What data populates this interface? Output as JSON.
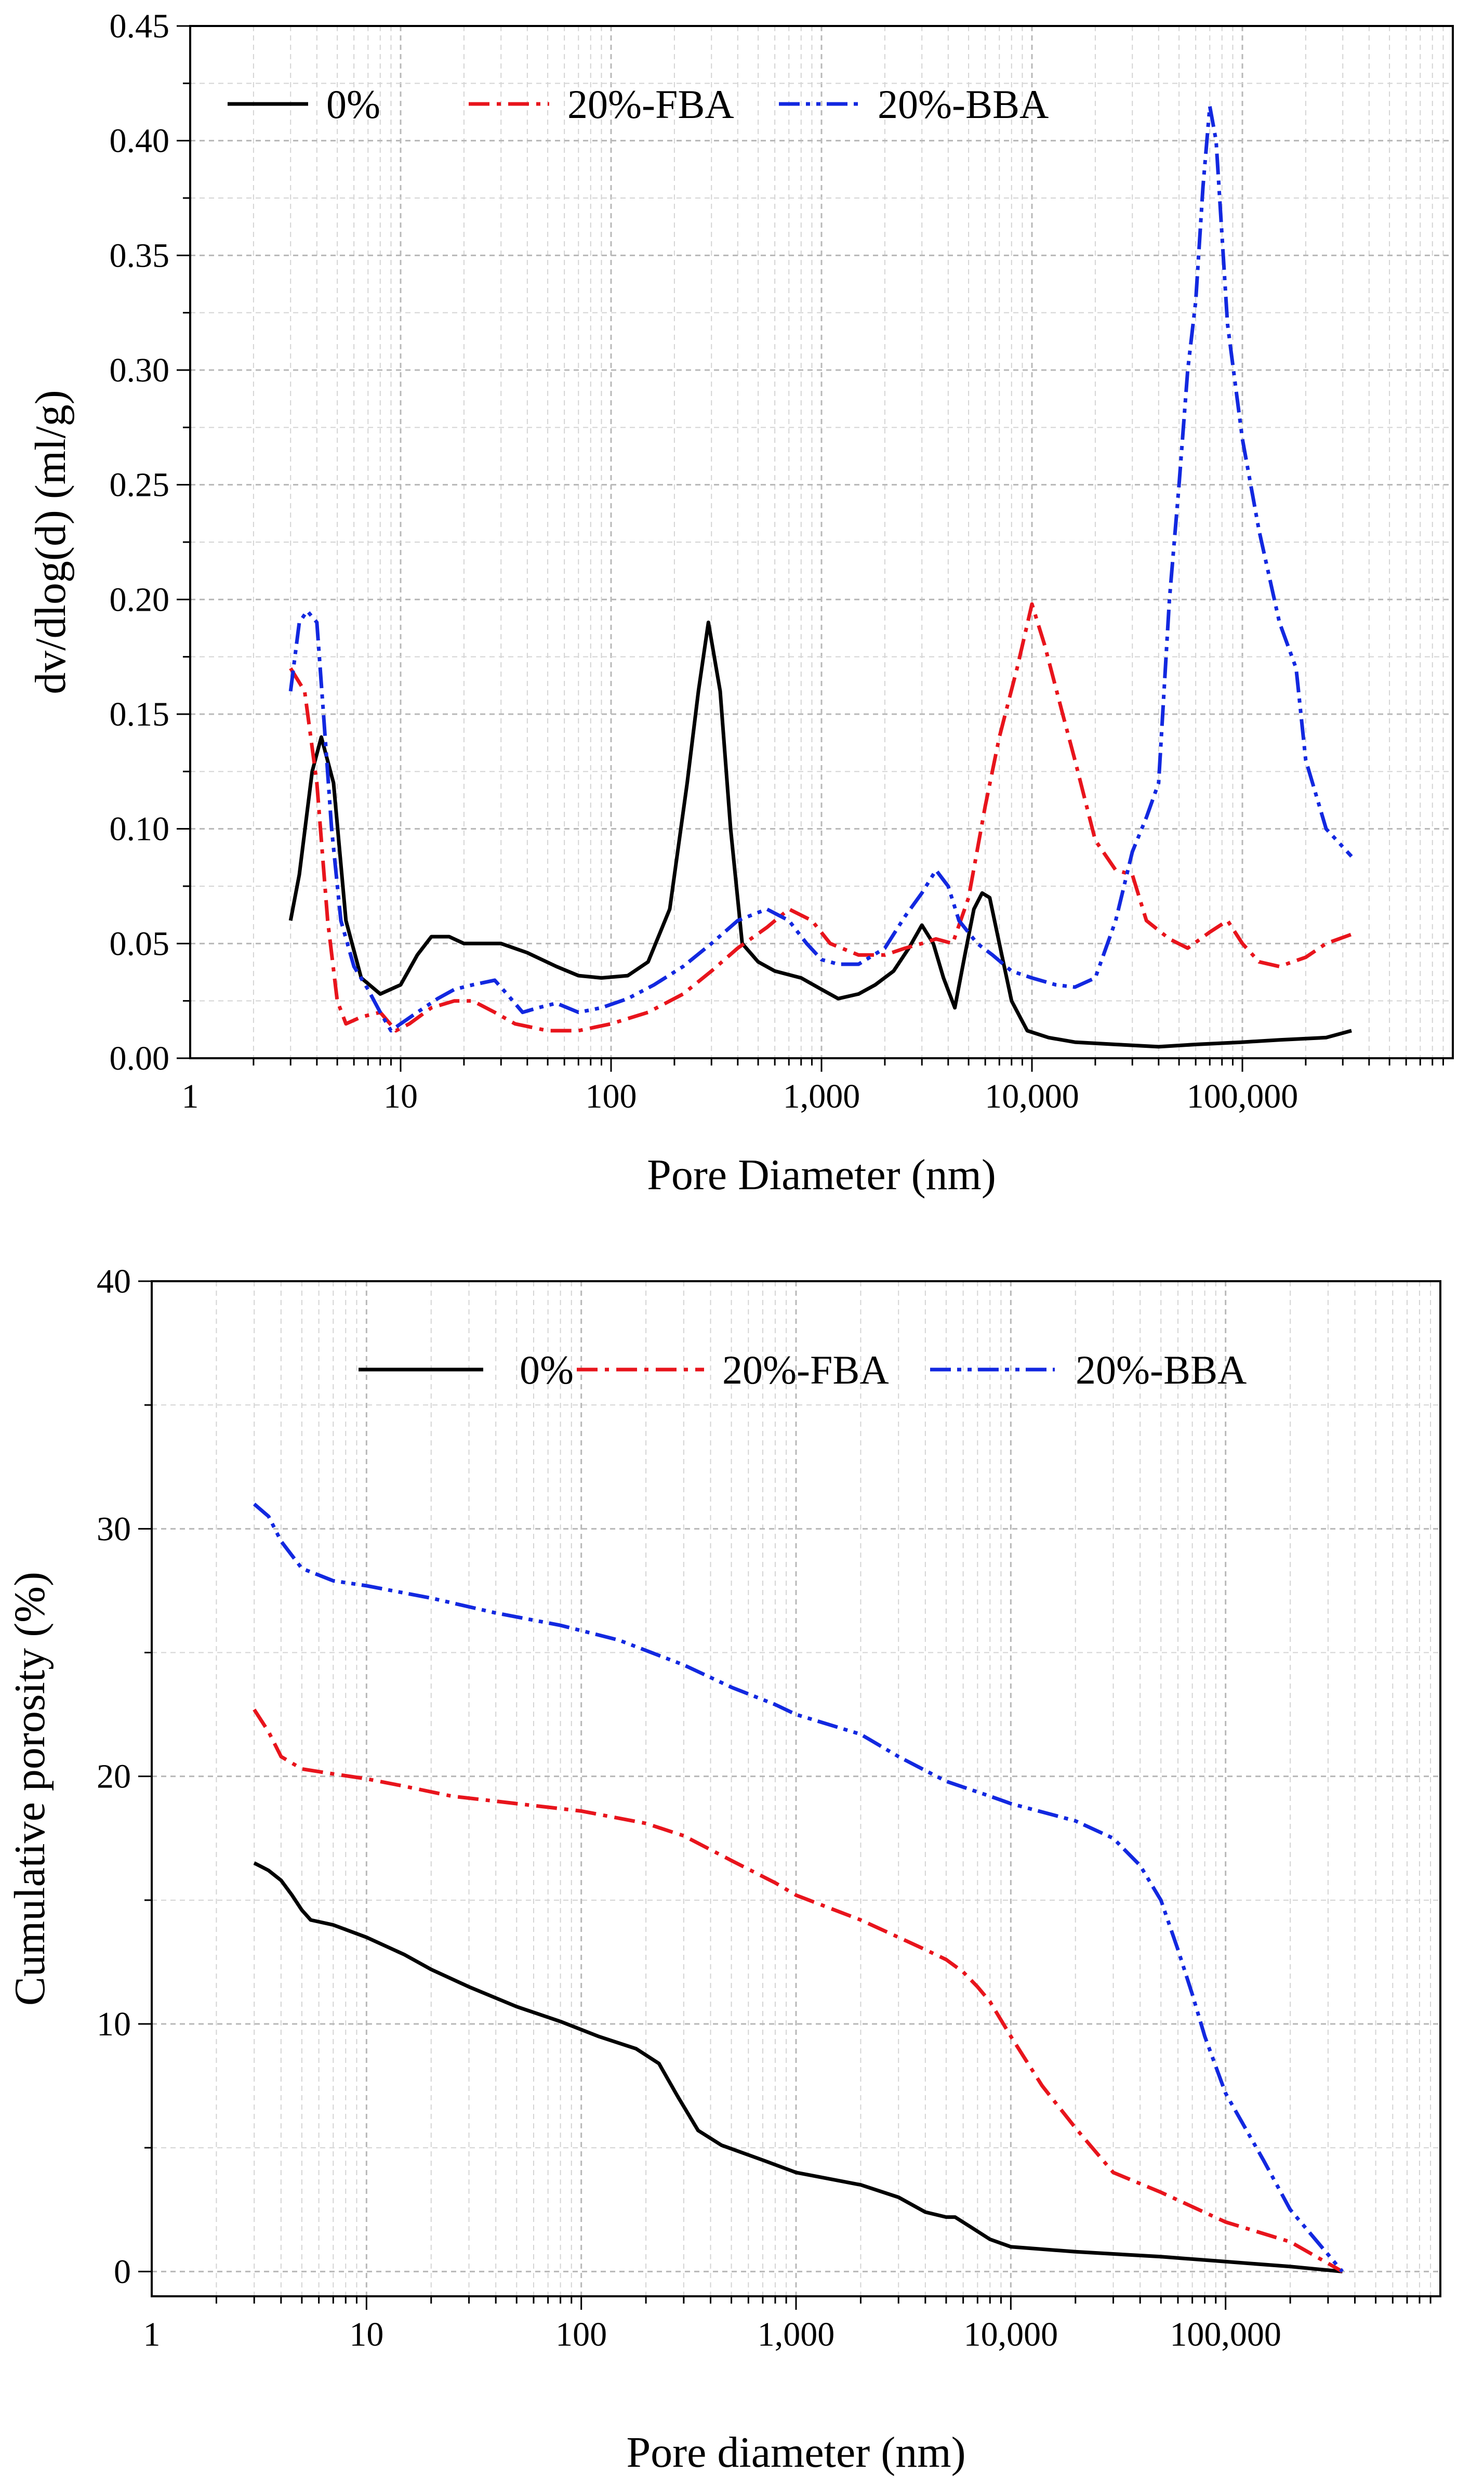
{
  "chart_data": [
    {
      "type": "line",
      "title": "",
      "xlabel": "Pore Diameter (nm)",
      "ylabel": "dv/dlog(d) (ml/g)",
      "xscale": "log",
      "xlim": [
        1,
        1000000
      ],
      "ylim": [
        0,
        0.45
      ],
      "grid": true,
      "legend_position": "top",
      "xtick_values": [
        1,
        10,
        100,
        1000,
        10000,
        100000
      ],
      "xtick_labels": [
        "1",
        "10",
        "100",
        "1,000",
        "10,000",
        "100,000"
      ],
      "ytick_values": [
        0,
        0.05,
        0.1,
        0.15,
        0.2,
        0.25,
        0.3,
        0.35,
        0.4,
        0.45
      ],
      "ytick_labels": [
        "0.00",
        "0.05",
        "0.10",
        "0.15",
        "0.20",
        "0.25",
        "0.30",
        "0.35",
        "0.40",
        "0.45"
      ],
      "series": [
        {
          "name": "0%",
          "color": "#000000",
          "dash": "solid",
          "x": [
            3.0,
            3.3,
            3.8,
            4.2,
            4.8,
            5.5,
            6.5,
            8.0,
            10,
            12,
            14,
            17,
            20,
            25,
            30,
            40,
            55,
            70,
            90,
            120,
            150,
            190,
            230,
            260,
            290,
            330,
            370,
            420,
            500,
            600,
            800,
            1000,
            1200,
            1500,
            1800,
            2200,
            2600,
            3000,
            3400,
            3800,
            4300,
            4800,
            5300,
            5800,
            6300,
            7000,
            8000,
            9500,
            12000,
            16000,
            25000,
            40000,
            60000,
            100000,
            150000,
            250000,
            330000
          ],
          "y": [
            0.06,
            0.08,
            0.125,
            0.14,
            0.12,
            0.06,
            0.035,
            0.028,
            0.032,
            0.045,
            0.053,
            0.053,
            0.05,
            0.05,
            0.05,
            0.046,
            0.04,
            0.036,
            0.035,
            0.036,
            0.042,
            0.065,
            0.12,
            0.16,
            0.19,
            0.16,
            0.1,
            0.05,
            0.042,
            0.038,
            0.035,
            0.03,
            0.026,
            0.028,
            0.032,
            0.038,
            0.048,
            0.058,
            0.05,
            0.035,
            0.022,
            0.045,
            0.065,
            0.072,
            0.07,
            0.05,
            0.025,
            0.012,
            0.009,
            0.007,
            0.006,
            0.005,
            0.006,
            0.007,
            0.008,
            0.009,
            0.012
          ]
        },
        {
          "name": "20%-FBA",
          "color": "#e8141c",
          "dash": "dashdot",
          "x": [
            3.0,
            3.5,
            4.0,
            4.5,
            5.0,
            5.5,
            6.5,
            8.0,
            9.5,
            11,
            14,
            18,
            22,
            28,
            35,
            50,
            70,
            100,
            150,
            220,
            300,
            400,
            550,
            700,
            900,
            1100,
            1500,
            2000,
            2500,
            3000,
            3500,
            4200,
            5000,
            6000,
            7000,
            8500,
            10000,
            11500,
            14000,
            16000,
            20000,
            25000,
            30000,
            35000,
            45000,
            55000,
            70000,
            85000,
            100000,
            120000,
            150000,
            200000,
            250000,
            330000
          ],
          "y": [
            0.17,
            0.16,
            0.12,
            0.06,
            0.025,
            0.015,
            0.018,
            0.02,
            0.012,
            0.015,
            0.022,
            0.025,
            0.025,
            0.02,
            0.015,
            0.012,
            0.012,
            0.015,
            0.02,
            0.028,
            0.038,
            0.048,
            0.057,
            0.065,
            0.06,
            0.05,
            0.045,
            0.045,
            0.048,
            0.05,
            0.052,
            0.05,
            0.07,
            0.11,
            0.14,
            0.17,
            0.198,
            0.18,
            0.15,
            0.13,
            0.095,
            0.082,
            0.08,
            0.06,
            0.052,
            0.048,
            0.055,
            0.06,
            0.05,
            0.042,
            0.04,
            0.044,
            0.05,
            0.054
          ]
        },
        {
          "name": "20%-BBA",
          "color": "#1228e0",
          "dash": "dashdotdot",
          "x": [
            3.0,
            3.3,
            3.6,
            4.0,
            4.3,
            4.7,
            5.2,
            6.0,
            7.0,
            8.0,
            9.0,
            10,
            12,
            15,
            18,
            22,
            28,
            32,
            38,
            45,
            55,
            70,
            90,
            120,
            160,
            220,
            300,
            400,
            550,
            700,
            850,
            1000,
            1200,
            1500,
            2000,
            2500,
            3000,
            3500,
            4000,
            4500,
            5500,
            6500,
            8000,
            10000,
            13000,
            16000,
            20000,
            25000,
            30000,
            35000,
            40000,
            45000,
            50000,
            55000,
            60000,
            65000,
            70000,
            75000,
            85000,
            100000,
            120000,
            150000,
            180000,
            200000,
            250000,
            330000
          ],
          "y": [
            0.16,
            0.19,
            0.195,
            0.19,
            0.15,
            0.1,
            0.06,
            0.04,
            0.03,
            0.02,
            0.012,
            0.015,
            0.02,
            0.026,
            0.03,
            0.032,
            0.034,
            0.028,
            0.02,
            0.022,
            0.024,
            0.02,
            0.022,
            0.026,
            0.032,
            0.04,
            0.05,
            0.06,
            0.065,
            0.06,
            0.05,
            0.043,
            0.041,
            0.041,
            0.048,
            0.062,
            0.072,
            0.082,
            0.075,
            0.06,
            0.05,
            0.045,
            0.038,
            0.035,
            0.032,
            0.031,
            0.035,
            0.06,
            0.09,
            0.105,
            0.12,
            0.2,
            0.25,
            0.3,
            0.33,
            0.38,
            0.415,
            0.4,
            0.32,
            0.27,
            0.23,
            0.19,
            0.17,
            0.13,
            0.1,
            0.088
          ]
        }
      ]
    },
    {
      "type": "line",
      "title": "",
      "xlabel": "Pore diameter (nm)",
      "ylabel": "Cumulative porosity (%)",
      "xscale": "log",
      "xlim": [
        1,
        1000000
      ],
      "ylim": [
        -1,
        40
      ],
      "grid": true,
      "legend_position": "top",
      "xtick_values": [
        1,
        10,
        100,
        1000,
        10000,
        100000
      ],
      "xtick_labels": [
        "1",
        "10",
        "100",
        "1,000",
        "10,000",
        "100,000"
      ],
      "ytick_values": [
        0,
        10,
        20,
        30,
        40
      ],
      "ytick_labels": [
        "0",
        "10",
        "20",
        "30",
        "40"
      ],
      "series": [
        {
          "name": "0%",
          "color": "#000000",
          "dash": "solid",
          "x": [
            3.0,
            3.5,
            4.0,
            4.5,
            5.0,
            5.5,
            7.0,
            10,
            15,
            20,
            30,
            50,
            80,
            120,
            180,
            230,
            280,
            350,
            450,
            700,
            1000,
            2000,
            3000,
            4000,
            5000,
            5500,
            6500,
            8000,
            10000,
            20000,
            50000,
            100000,
            200000,
            350000
          ],
          "y": [
            16.5,
            16.2,
            15.8,
            15.2,
            14.6,
            14.2,
            14.0,
            13.5,
            12.8,
            12.2,
            11.5,
            10.7,
            10.1,
            9.5,
            9.0,
            8.4,
            7.1,
            5.7,
            5.1,
            4.5,
            4.0,
            3.5,
            3.0,
            2.4,
            2.2,
            2.2,
            1.8,
            1.3,
            1.0,
            0.8,
            0.6,
            0.4,
            0.2,
            0.0
          ]
        },
        {
          "name": "20%-FBA",
          "color": "#e8141c",
          "dash": "dashdot",
          "x": [
            3.0,
            3.5,
            4.0,
            5.0,
            7.0,
            10,
            15,
            25,
            50,
            100,
            200,
            300,
            500,
            800,
            1000,
            2000,
            3000,
            4000,
            5000,
            6000,
            7000,
            8000,
            10000,
            14000,
            20000,
            30000,
            50000,
            100000,
            200000,
            350000
          ],
          "y": [
            22.7,
            21.8,
            20.8,
            20.3,
            20.1,
            19.9,
            19.6,
            19.2,
            18.9,
            18.6,
            18.1,
            17.6,
            16.6,
            15.7,
            15.2,
            14.2,
            13.5,
            13.0,
            12.6,
            12.1,
            11.5,
            10.9,
            9.5,
            7.5,
            5.8,
            4.0,
            3.2,
            2.0,
            1.2,
            0.0
          ]
        },
        {
          "name": "20%-BBA",
          "color": "#1228e0",
          "dash": "dashdotdot",
          "x": [
            3.0,
            3.5,
            4.0,
            5.0,
            7.0,
            10,
            20,
            40,
            80,
            150,
            300,
            500,
            800,
            1000,
            2000,
            3000,
            5000,
            8000,
            10000,
            20000,
            30000,
            40000,
            50000,
            60000,
            70000,
            80000,
            100000,
            150000,
            200000,
            350000
          ],
          "y": [
            31.0,
            30.5,
            29.5,
            28.4,
            27.9,
            27.7,
            27.2,
            26.6,
            26.1,
            25.5,
            24.5,
            23.6,
            22.9,
            22.5,
            21.7,
            20.8,
            19.8,
            19.2,
            18.9,
            18.2,
            17.5,
            16.4,
            15.0,
            13.0,
            11.2,
            9.5,
            7.2,
            4.5,
            2.5,
            0.0
          ]
        }
      ]
    }
  ]
}
